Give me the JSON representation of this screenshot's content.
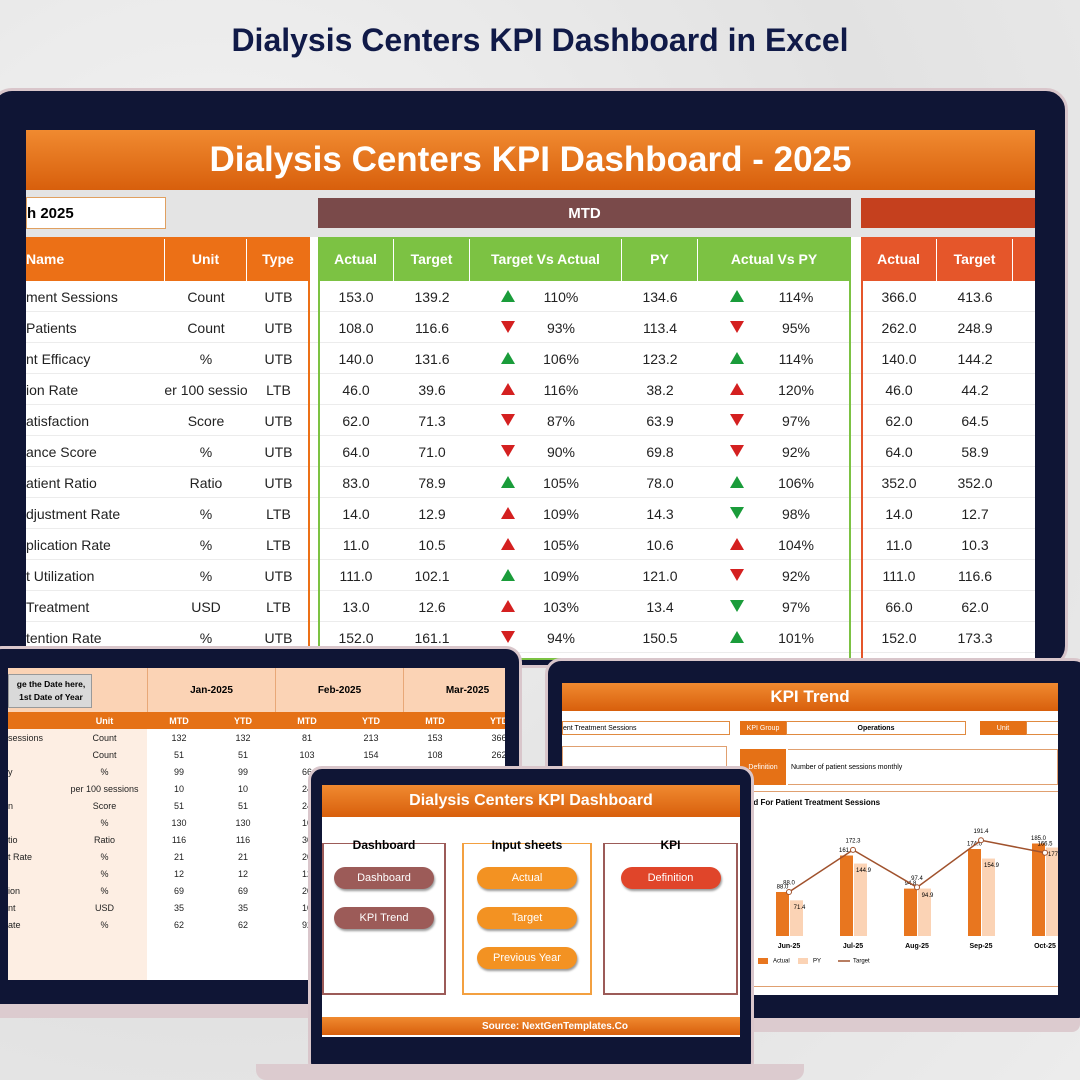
{
  "heading": "Dialysis Centers KPI Dashboard in Excel",
  "main": {
    "title": "Dialysis Centers KPI Dashboard - 2025",
    "date": "h 2025",
    "mtd": "MTD",
    "headers": [
      "Name",
      "Unit",
      "Type",
      "Actual",
      "Target",
      "Target Vs Actual",
      "PY",
      "Actual Vs PY",
      "Actual",
      "Target"
    ],
    "rows": [
      {
        "cells": [
          "ment Sessions",
          "Count",
          "UTB",
          "153.0",
          "139.2",
          "110%",
          "134.6",
          "114%",
          "366.0",
          "413.6"
        ],
        "tva_arrow": "up",
        "tva_color": "#1a9c3a",
        "avp_arrow": "up",
        "avp_color": "#1a9c3a"
      },
      {
        "cells": [
          " Patients",
          "Count",
          "UTB",
          "108.0",
          "116.6",
          "93%",
          "113.4",
          "95%",
          "262.0",
          "248.9"
        ],
        "tva_arrow": "down",
        "tva_color": "#d42020",
        "avp_arrow": "down",
        "avp_color": "#d42020"
      },
      {
        "cells": [
          "nt Efficacy",
          "%",
          "UTB",
          "140.0",
          "131.6",
          "106%",
          "123.2",
          "114%",
          "140.0",
          "144.2"
        ],
        "tva_arrow": "up",
        "tva_color": "#1a9c3a",
        "avp_arrow": "up",
        "avp_color": "#1a9c3a"
      },
      {
        "cells": [
          "ion Rate",
          "er 100 sessio",
          "LTB",
          "46.0",
          "39.6",
          "116%",
          "38.2",
          "120%",
          "46.0",
          "44.2"
        ],
        "tva_arrow": "up",
        "tva_color": "#d42020",
        "avp_arrow": "up",
        "avp_color": "#d42020"
      },
      {
        "cells": [
          "atisfaction",
          "Score",
          "UTB",
          "62.0",
          "71.3",
          "87%",
          "63.9",
          "97%",
          "62.0",
          "64.5"
        ],
        "tva_arrow": "down",
        "tva_color": "#d42020",
        "avp_arrow": "down",
        "avp_color": "#d42020"
      },
      {
        "cells": [
          "ance Score",
          "%",
          "UTB",
          "64.0",
          "71.0",
          "90%",
          "69.8",
          "92%",
          "64.0",
          "58.9"
        ],
        "tva_arrow": "down",
        "tva_color": "#d42020",
        "avp_arrow": "down",
        "avp_color": "#d42020"
      },
      {
        "cells": [
          "atient Ratio",
          "Ratio",
          "UTB",
          "83.0",
          "78.9",
          "105%",
          "78.0",
          "106%",
          "352.0",
          "352.0"
        ],
        "tva_arrow": "up",
        "tva_color": "#1a9c3a",
        "avp_arrow": "up",
        "avp_color": "#1a9c3a"
      },
      {
        "cells": [
          "djustment Rate",
          "%",
          "LTB",
          "14.0",
          "12.9",
          "109%",
          "14.3",
          "98%",
          "14.0",
          "12.7"
        ],
        "tva_arrow": "up",
        "tva_color": "#d42020",
        "avp_arrow": "down",
        "avp_color": "#1a9c3a"
      },
      {
        "cells": [
          "plication Rate",
          "%",
          "LTB",
          "11.0",
          "10.5",
          "105%",
          "10.6",
          "104%",
          "11.0",
          "10.3"
        ],
        "tva_arrow": "up",
        "tva_color": "#d42020",
        "avp_arrow": "up",
        "avp_color": "#d42020"
      },
      {
        "cells": [
          "t Utilization",
          "%",
          "UTB",
          "111.0",
          "102.1",
          "109%",
          "121.0",
          "92%",
          "111.0",
          "116.6"
        ],
        "tva_arrow": "up",
        "tva_color": "#1a9c3a",
        "avp_arrow": "down",
        "avp_color": "#d42020"
      },
      {
        "cells": [
          " Treatment",
          "USD",
          "LTB",
          "13.0",
          "12.6",
          "103%",
          "13.4",
          "97%",
          "66.0",
          "62.0"
        ],
        "tva_arrow": "up",
        "tva_color": "#d42020",
        "avp_arrow": "down",
        "avp_color": "#1a9c3a"
      },
      {
        "cells": [
          "tention Rate",
          "%",
          "UTB",
          "152.0",
          "161.1",
          "94%",
          "150.5",
          "101%",
          "152.0",
          "173.3"
        ],
        "tva_arrow": "down",
        "tva_color": "#d42020",
        "avp_arrow": "up",
        "avp_color": "#1a9c3a"
      }
    ]
  },
  "input": {
    "note": [
      "ge the Date here,",
      "1st Date of Year"
    ],
    "months": [
      "Jan-2025",
      "Feb-2025",
      "Mar-2025"
    ],
    "unit_header": "Unit",
    "sub": [
      "MTD",
      "YTD",
      "MTD",
      "YTD",
      "MTD",
      "YTD"
    ],
    "rows": [
      [
        "sessions",
        "Count",
        "132",
        "132",
        "81",
        "213",
        "153",
        "366"
      ],
      [
        null,
        "Count",
        "51",
        "51",
        "103",
        "154",
        "108",
        "262"
      ],
      [
        "y",
        "%",
        "99",
        "99",
        "66"
      ],
      [
        null,
        "per 100 sessions",
        "10",
        "10",
        "24"
      ],
      [
        "n",
        "Score",
        "51",
        "51",
        "24"
      ],
      [
        null,
        "%",
        "130",
        "130",
        "10"
      ],
      [
        "tio",
        "Ratio",
        "116",
        "116",
        "30"
      ],
      [
        "t Rate",
        "%",
        "21",
        "21",
        "20"
      ],
      [
        null,
        "%",
        "12",
        "12",
        "12"
      ],
      [
        "ion",
        "%",
        "69",
        "69",
        "20"
      ],
      [
        "nt",
        "USD",
        "35",
        "35",
        "10"
      ],
      [
        "ate",
        "%",
        "62",
        "62",
        "92"
      ]
    ]
  },
  "trend": {
    "title": "KPI Trend",
    "kpi_name": "ent Treatment Sessions",
    "group_label": "KPI Group",
    "group": "Operations",
    "unit_label": "Unit",
    "def_label": "Definition",
    "definition": "Number of patient sessions monthly"
  },
  "chart_data": {
    "type": "bar",
    "title": "end For Patient Treatment Sessions",
    "categories": [
      "Jun-25",
      "Jul-25",
      "Aug-25",
      "Sep-25",
      "Oct-25"
    ],
    "ylim": [
      0,
      220
    ],
    "series": [
      {
        "name": "Actual",
        "type": "bar",
        "color": "#e8761f",
        "values": [
          88,
          161,
          94.8,
          174,
          185
        ],
        "value_labels": [
          "88.0",
          "161.0",
          "94.8",
          "174.0",
          "185.0"
        ]
      },
      {
        "name": "PY",
        "type": "bar",
        "color": "#fbd3b5",
        "values": [
          71.4,
          144.9,
          94.9,
          154.9,
          177
        ],
        "value_labels": [
          "71.4",
          "144.9",
          "94.9",
          "154.9",
          "177.0"
        ]
      },
      {
        "name": "Target",
        "type": "line",
        "color": "#a0522d",
        "values": [
          88,
          172.3,
          97.4,
          191.4,
          166.5
        ],
        "value_labels": [
          "88.0",
          "172.3",
          "97.4",
          "191.4",
          "166.5"
        ]
      }
    ]
  },
  "menu": {
    "title": "Dialysis Centers KPI Dashboard",
    "groups": [
      {
        "title": "Dashboard",
        "buttons": [
          "Dashboard",
          "KPI Trend"
        ],
        "color": "#9c5b58"
      },
      {
        "title": "Input sheets",
        "buttons": [
          "Actual",
          "Target",
          "Previous Year"
        ],
        "color": "#f39222"
      },
      {
        "title": "KPI",
        "buttons": [
          "Definition"
        ],
        "color": "#e0452a"
      }
    ],
    "source": "Source: NextGenTemplates.Co"
  }
}
